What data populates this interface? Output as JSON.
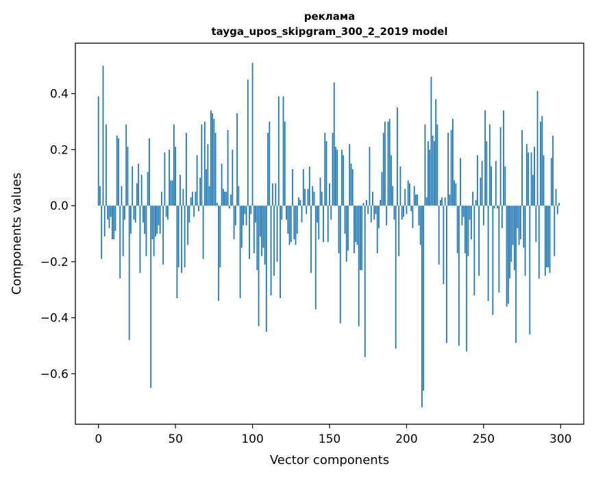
{
  "chart_data": {
    "type": "bar",
    "title": "реклама",
    "subtitle": "tayga_upos_skipgram_300_2_2019 model",
    "xlabel": "Vector components",
    "ylabel": "Components values",
    "xlim": [
      -15,
      315
    ],
    "ylim": [
      -0.78,
      0.58
    ],
    "x_ticks": [
      0,
      50,
      100,
      150,
      200,
      250,
      300
    ],
    "x_tick_labels": [
      "0",
      "50",
      "100",
      "150",
      "200",
      "250",
      "300"
    ],
    "y_ticks": [
      -0.6,
      -0.4,
      -0.2,
      0.0,
      0.2,
      0.4
    ],
    "y_tick_labels": [
      "−0.6",
      "−0.4",
      "−0.2",
      "0.0",
      "0.2",
      "0.4"
    ],
    "grid": false,
    "color": "#1f77b4",
    "values": [
      0.39,
      0.07,
      -0.19,
      0.5,
      -0.11,
      0.29,
      -0.05,
      -0.08,
      -0.04,
      -0.12,
      -0.12,
      -0.09,
      0.25,
      0.24,
      -0.26,
      0.07,
      -0.18,
      -0.05,
      0.29,
      0.21,
      -0.48,
      -0.1,
      0.14,
      -0.05,
      -0.06,
      0.08,
      0.15,
      -0.24,
      0.11,
      -0.06,
      -0.1,
      -0.18,
      0.12,
      0.24,
      -0.65,
      -0.12,
      -0.18,
      -0.11,
      -0.1,
      -0.07,
      -0.1,
      0.05,
      -0.21,
      0.19,
      -0.04,
      -0.05,
      0.2,
      0.09,
      0.09,
      0.29,
      0.21,
      -0.33,
      -0.22,
      0.11,
      -0.24,
      0.06,
      -0.22,
      0.26,
      -0.14,
      -0.06,
      0.03,
      0.05,
      -0.04,
      0.05,
      0.18,
      -0.02,
      0.1,
      0.29,
      -0.19,
      0.3,
      0.13,
      0.22,
      0.07,
      0.34,
      0.33,
      0.31,
      0.26,
      0.01,
      -0.34,
      -0.22,
      0.15,
      0.06,
      0.05,
      0.05,
      0.27,
      -0.01,
      0.04,
      0.2,
      -0.12,
      -0.07,
      0.33,
      0.07,
      -0.33,
      -0.15,
      -0.07,
      -0.03,
      -0.07,
      0.45,
      -0.19,
      -0.03,
      0.51,
      -0.17,
      -0.06,
      -0.23,
      -0.43,
      -0.11,
      -0.18,
      -0.15,
      -0.21,
      -0.45,
      0.26,
      0.3,
      -0.32,
      0.08,
      -0.25,
      0.08,
      -0.2,
      0.39,
      -0.33,
      -0.05,
      0.39,
      0.3,
      -0.05,
      -0.1,
      -0.14,
      -0.13,
      0.13,
      -0.12,
      -0.14,
      -0.1,
      0.03,
      0.02,
      -0.06,
      0.13,
      0.06,
      -0.03,
      0.06,
      0.14,
      -0.24,
      0.07,
      0.05,
      -0.37,
      -0.06,
      -0.12,
      0.1,
      0.05,
      -0.13,
      0.26,
      0.23,
      -0.13,
      0.08,
      -0.05,
      0.26,
      0.44,
      0.21,
      0.2,
      -0.17,
      -0.42,
      0.2,
      0.18,
      -0.1,
      -0.2,
      -0.16,
      0.22,
      0.15,
      0.13,
      -0.17,
      -0.13,
      -0.14,
      -0.43,
      -0.23,
      -0.23,
      0.01,
      -0.54,
      0.02,
      -0.03,
      0.21,
      -0.06,
      0.05,
      -0.05,
      -0.03,
      -0.17,
      -0.08,
      0.02,
      0.12,
      0.26,
      0.3,
      -0.07,
      0.3,
      0.31,
      0.18,
      0.07,
      -0.05,
      -0.51,
      0.35,
      -0.18,
      0.14,
      -0.05,
      -0.04,
      0.06,
      -0.03,
      0.09,
      0.08,
      -0.02,
      -0.08,
      0.07,
      0.04,
      0.04,
      -0.07,
      -0.14,
      -0.72,
      -0.66,
      0.29,
      0.03,
      0.23,
      0.2,
      0.46,
      0.25,
      0.23,
      0.38,
      0.29,
      -0.21,
      0.02,
      0.03,
      -0.28,
      0.03,
      -0.49,
      0.26,
      0.04,
      0.27,
      0.31,
      0.09,
      0.08,
      -0.17,
      -0.5,
      0.17,
      -0.07,
      -0.04,
      -0.17,
      -0.52,
      -0.18,
      -0.05,
      -0.12,
      0.05,
      -0.32,
      0.02,
      0.18,
      -0.25,
      0.1,
      0.16,
      -0.07,
      0.34,
      0.23,
      -0.34,
      0.29,
      0.14,
      -0.39,
      -0.01,
      0.16,
      -0.01,
      -0.31,
      0.28,
      -0.08,
      0.34,
      0.14,
      -0.36,
      -0.35,
      -0.26,
      -0.2,
      -0.14,
      -0.23,
      -0.49,
      -0.08,
      -0.14,
      -0.12,
      0.27,
      -0.15,
      -0.25,
      0.22,
      0.19,
      -0.46,
      0.19,
      0.11,
      0.21,
      -0.13,
      0.41,
      -0.26,
      0.3,
      0.32,
      0.18,
      -0.25,
      -0.22,
      -0.22,
      -0.24,
      0.17,
      0.25,
      -0.18,
      0.06,
      -0.03,
      0.01
    ]
  }
}
